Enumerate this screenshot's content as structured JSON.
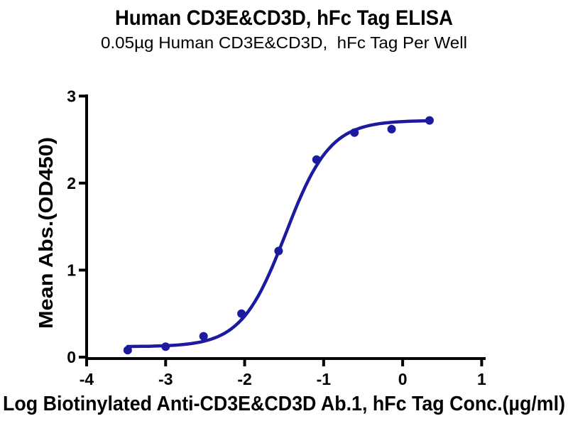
{
  "colors": {
    "background": "#ffffff",
    "axis": "#000000",
    "text": "#000000",
    "series_blue": "#1c1a9e"
  },
  "chart_data": {
    "type": "scatter",
    "title": "Human CD3E&CD3D, hFc Tag ELISA",
    "subtitle": "0.05µg Human CD3E&CD3D,  hFc Tag Per Well",
    "xlabel": "Log Biotinylated Anti-CD3E&CD3D Ab.1, hFc Tag Conc.(µg/ml)",
    "ylabel": "Mean Abs.(OD450)",
    "xlim": [
      -4,
      1
    ],
    "ylim": [
      0,
      3
    ],
    "xticks": [
      -4,
      -3,
      -2,
      -1,
      0,
      1
    ],
    "yticks": [
      0,
      1,
      2,
      3
    ],
    "grid": false,
    "legend": "none",
    "series": [
      {
        "name": "Biotinylated Anti-CD3E&CD3D Ab.1, hFc Tag",
        "marker": "circle",
        "color": "#1c1a9e",
        "points": [
          {
            "x": -3.48,
            "y": 0.08
          },
          {
            "x": -3.0,
            "y": 0.12
          },
          {
            "x": -2.52,
            "y": 0.24
          },
          {
            "x": -2.04,
            "y": 0.5
          },
          {
            "x": -1.57,
            "y": 1.22
          },
          {
            "x": -1.09,
            "y": 2.27
          },
          {
            "x": -0.61,
            "y": 2.58
          },
          {
            "x": -0.14,
            "y": 2.62
          },
          {
            "x": 0.34,
            "y": 2.72
          }
        ]
      }
    ],
    "fit_curve": {
      "model": "4PL sigmoid",
      "bottom": 0.12,
      "top": 2.72,
      "logEC50": -1.48,
      "hillslope": 1.55,
      "x_start": -3.48,
      "x_end": 0.34,
      "color": "#1c1a9e"
    }
  }
}
